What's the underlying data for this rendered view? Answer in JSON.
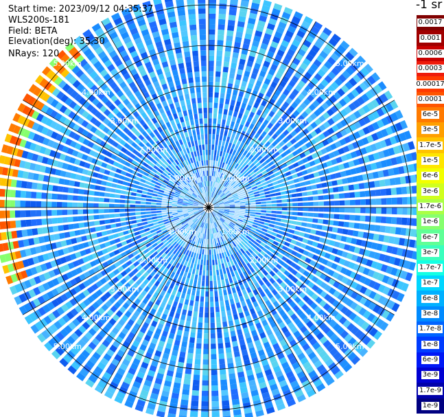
{
  "info": {
    "start_time": "Start time: 2023/09/12 04:35:37",
    "instrument": "WLS200s-181",
    "field": "Field: BETA",
    "elevation": "Elevation(deg): 35.30",
    "nrays": "NRays: 120"
  },
  "colorbar": {
    "unit": "-1 sr",
    "labels": [
      "0.0017",
      "0.001",
      "0.0006",
      "0.0003",
      "0.00017",
      "0.0001",
      "6e-5",
      "3e-5",
      "1.7e-5",
      "1e-5",
      "6e-6",
      "3e-6",
      "1.7e-6",
      "1e-6",
      "6e-7",
      "3e-7",
      "1.7e-7",
      "1e-7",
      "6e-8",
      "3e-8",
      "1.7e-8",
      "1e-8",
      "6e-9",
      "3e-9",
      "1.7e-9",
      "1e-9"
    ],
    "colors": [
      "#800000",
      "#a00000",
      "#c80000",
      "#ee1b0b",
      "#ff3a00",
      "#ff5500",
      "#ff7a00",
      "#ff9f00",
      "#ffc300",
      "#ffe600",
      "#f2ff00",
      "#d0ff1e",
      "#abff46",
      "#86ff6e",
      "#5fff96",
      "#3affbd",
      "#14ffe4",
      "#00d6ff",
      "#00b0ff",
      "#008aff",
      "#0064ff",
      "#003cff",
      "#0018f6",
      "#0000d2",
      "#0000aa",
      "#000080"
    ]
  },
  "chart_data": {
    "type": "heatmap",
    "projection": "polar",
    "nrays": 120,
    "range_rings_km": [
      1,
      2,
      3,
      4,
      5
    ],
    "max_range_km": 5.3,
    "ring_labels": [
      "1.00km",
      "2.00km",
      "3.00km",
      "4.00km",
      "5.00km"
    ],
    "colorscale": "log, 1e-9 to 0.0017 sr^-1",
    "background_level": "1e-8 to 1e-7",
    "features": [
      {
        "description": "enhanced backscatter band",
        "range_km": [
          5.0,
          5.3
        ],
        "azimuth_deg": [
          248,
          320
        ],
        "peak_level": "1e-5"
      }
    ]
  }
}
